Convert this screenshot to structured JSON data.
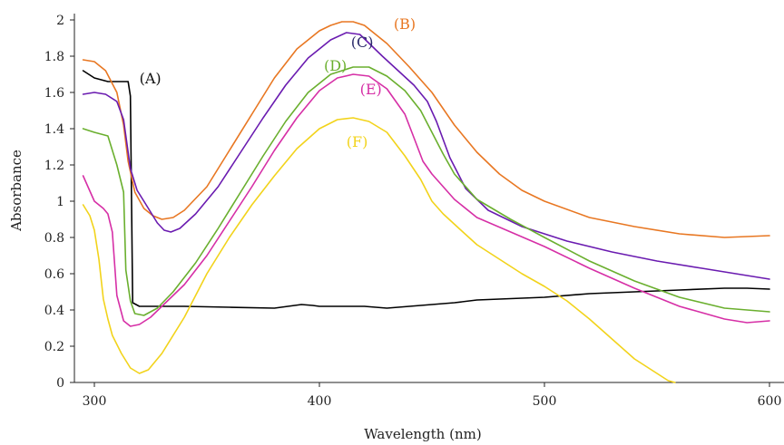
{
  "chart_data": {
    "type": "line",
    "xlabel": "Wavelength (nm)",
    "ylabel": "Absorbance",
    "xlim": [
      295,
      600
    ],
    "ylim": [
      0,
      2
    ],
    "x_ticks": [
      300,
      400,
      500,
      600
    ],
    "y_ticks": [
      0,
      0.2,
      0.4,
      0.6,
      0.8,
      1,
      1.2,
      1.4,
      1.6,
      1.8,
      2
    ],
    "x_tick_labels": [
      "300",
      "400",
      "500",
      "600"
    ],
    "y_tick_labels": [
      "0",
      "0.2",
      "0.4",
      "0.6",
      "0.8",
      "1",
      "1.2",
      "1.4",
      "1.6",
      "1.8",
      "2"
    ],
    "grid": false,
    "series": [
      {
        "name": "(A)",
        "color": "#000000",
        "points": [
          [
            295,
            1.72
          ],
          [
            300,
            1.68
          ],
          [
            306,
            1.66
          ],
          [
            311,
            1.66
          ],
          [
            315,
            1.66
          ],
          [
            316,
            1.58
          ],
          [
            317,
            0.44
          ],
          [
            320,
            0.42
          ],
          [
            340,
            0.42
          ],
          [
            360,
            0.415
          ],
          [
            380,
            0.41
          ],
          [
            386,
            0.42
          ],
          [
            392,
            0.43
          ],
          [
            397,
            0.425
          ],
          [
            400,
            0.42
          ],
          [
            420,
            0.42
          ],
          [
            430,
            0.41
          ],
          [
            440,
            0.42
          ],
          [
            460,
            0.44
          ],
          [
            470,
            0.455
          ],
          [
            480,
            0.46
          ],
          [
            500,
            0.47
          ],
          [
            520,
            0.49
          ],
          [
            540,
            0.5
          ],
          [
            560,
            0.51
          ],
          [
            580,
            0.52
          ],
          [
            590,
            0.52
          ],
          [
            600,
            0.515
          ]
        ]
      },
      {
        "name": "(B)",
        "color": "#E87722",
        "points": [
          [
            295,
            1.78
          ],
          [
            300,
            1.77
          ],
          [
            305,
            1.72
          ],
          [
            310,
            1.6
          ],
          [
            313,
            1.42
          ],
          [
            315,
            1.22
          ],
          [
            318,
            1.05
          ],
          [
            322,
            0.96
          ],
          [
            326,
            0.92
          ],
          [
            330,
            0.9
          ],
          [
            335,
            0.91
          ],
          [
            340,
            0.95
          ],
          [
            350,
            1.08
          ],
          [
            360,
            1.28
          ],
          [
            370,
            1.48
          ],
          [
            380,
            1.68
          ],
          [
            390,
            1.84
          ],
          [
            400,
            1.94
          ],
          [
            405,
            1.97
          ],
          [
            410,
            1.99
          ],
          [
            415,
            1.99
          ],
          [
            420,
            1.97
          ],
          [
            430,
            1.87
          ],
          [
            440,
            1.74
          ],
          [
            450,
            1.6
          ],
          [
            460,
            1.42
          ],
          [
            470,
            1.27
          ],
          [
            480,
            1.15
          ],
          [
            490,
            1.06
          ],
          [
            500,
            1.0
          ],
          [
            520,
            0.91
          ],
          [
            540,
            0.86
          ],
          [
            560,
            0.82
          ],
          [
            580,
            0.8
          ],
          [
            600,
            0.81
          ]
        ]
      },
      {
        "name": "(C)",
        "color": "#6A1BB0",
        "points": [
          [
            295,
            1.59
          ],
          [
            300,
            1.6
          ],
          [
            305,
            1.59
          ],
          [
            310,
            1.55
          ],
          [
            313,
            1.45
          ],
          [
            316,
            1.18
          ],
          [
            319,
            1.06
          ],
          [
            322,
            1.0
          ],
          [
            325,
            0.94
          ],
          [
            328,
            0.88
          ],
          [
            331,
            0.84
          ],
          [
            334,
            0.83
          ],
          [
            338,
            0.85
          ],
          [
            345,
            0.93
          ],
          [
            355,
            1.08
          ],
          [
            365,
            1.27
          ],
          [
            375,
            1.46
          ],
          [
            385,
            1.64
          ],
          [
            395,
            1.79
          ],
          [
            405,
            1.89
          ],
          [
            412,
            1.93
          ],
          [
            418,
            1.92
          ],
          [
            423,
            1.86
          ],
          [
            428,
            1.8
          ],
          [
            435,
            1.72
          ],
          [
            442,
            1.64
          ],
          [
            448,
            1.55
          ],
          [
            452,
            1.44
          ],
          [
            458,
            1.24
          ],
          [
            465,
            1.07
          ],
          [
            475,
            0.95
          ],
          [
            490,
            0.86
          ],
          [
            510,
            0.78
          ],
          [
            530,
            0.72
          ],
          [
            550,
            0.67
          ],
          [
            570,
            0.63
          ],
          [
            585,
            0.6
          ],
          [
            600,
            0.57
          ]
        ]
      },
      {
        "name": "(D)",
        "color": "#6AAF2E",
        "points": [
          [
            295,
            1.4
          ],
          [
            300,
            1.38
          ],
          [
            306,
            1.36
          ],
          [
            310,
            1.2
          ],
          [
            313,
            1.05
          ],
          [
            314,
            0.62
          ],
          [
            316,
            0.45
          ],
          [
            318,
            0.38
          ],
          [
            322,
            0.37
          ],
          [
            328,
            0.41
          ],
          [
            335,
            0.5
          ],
          [
            345,
            0.66
          ],
          [
            355,
            0.85
          ],
          [
            365,
            1.05
          ],
          [
            375,
            1.25
          ],
          [
            385,
            1.44
          ],
          [
            395,
            1.6
          ],
          [
            405,
            1.7
          ],
          [
            415,
            1.74
          ],
          [
            422,
            1.74
          ],
          [
            430,
            1.69
          ],
          [
            438,
            1.61
          ],
          [
            445,
            1.5
          ],
          [
            450,
            1.38
          ],
          [
            455,
            1.26
          ],
          [
            460,
            1.15
          ],
          [
            470,
            1.01
          ],
          [
            485,
            0.9
          ],
          [
            500,
            0.8
          ],
          [
            520,
            0.67
          ],
          [
            540,
            0.56
          ],
          [
            560,
            0.47
          ],
          [
            580,
            0.41
          ],
          [
            600,
            0.39
          ]
        ]
      },
      {
        "name": "(E)",
        "color": "#D62FA6",
        "points": [
          [
            295,
            1.14
          ],
          [
            300,
            1.0
          ],
          [
            304,
            0.96
          ],
          [
            306,
            0.93
          ],
          [
            308,
            0.83
          ],
          [
            310,
            0.48
          ],
          [
            313,
            0.34
          ],
          [
            316,
            0.31
          ],
          [
            320,
            0.32
          ],
          [
            325,
            0.36
          ],
          [
            330,
            0.42
          ],
          [
            340,
            0.54
          ],
          [
            350,
            0.7
          ],
          [
            360,
            0.89
          ],
          [
            370,
            1.08
          ],
          [
            380,
            1.28
          ],
          [
            390,
            1.46
          ],
          [
            400,
            1.61
          ],
          [
            408,
            1.68
          ],
          [
            415,
            1.7
          ],
          [
            422,
            1.69
          ],
          [
            430,
            1.62
          ],
          [
            438,
            1.48
          ],
          [
            442,
            1.35
          ],
          [
            446,
            1.22
          ],
          [
            450,
            1.15
          ],
          [
            460,
            1.01
          ],
          [
            470,
            0.91
          ],
          [
            485,
            0.83
          ],
          [
            500,
            0.75
          ],
          [
            520,
            0.63
          ],
          [
            540,
            0.52
          ],
          [
            560,
            0.42
          ],
          [
            580,
            0.35
          ],
          [
            590,
            0.33
          ],
          [
            600,
            0.34
          ]
        ]
      },
      {
        "name": "(F)",
        "color": "#F2D31B",
        "points": [
          [
            295,
            0.98
          ],
          [
            298,
            0.92
          ],
          [
            300,
            0.84
          ],
          [
            302,
            0.68
          ],
          [
            304,
            0.46
          ],
          [
            306,
            0.35
          ],
          [
            308,
            0.26
          ],
          [
            312,
            0.16
          ],
          [
            316,
            0.08
          ],
          [
            320,
            0.05
          ],
          [
            324,
            0.07
          ],
          [
            330,
            0.16
          ],
          [
            340,
            0.36
          ],
          [
            350,
            0.6
          ],
          [
            360,
            0.8
          ],
          [
            370,
            0.98
          ],
          [
            380,
            1.14
          ],
          [
            390,
            1.29
          ],
          [
            400,
            1.4
          ],
          [
            408,
            1.45
          ],
          [
            415,
            1.46
          ],
          [
            422,
            1.44
          ],
          [
            430,
            1.38
          ],
          [
            438,
            1.25
          ],
          [
            445,
            1.12
          ],
          [
            450,
            1.0
          ],
          [
            455,
            0.93
          ],
          [
            462,
            0.85
          ],
          [
            470,
            0.76
          ],
          [
            480,
            0.68
          ],
          [
            490,
            0.6
          ],
          [
            500,
            0.53
          ],
          [
            510,
            0.45
          ],
          [
            520,
            0.35
          ],
          [
            530,
            0.24
          ],
          [
            540,
            0.13
          ],
          [
            550,
            0.05
          ],
          [
            555,
            0.01
          ],
          [
            558,
            0.0
          ]
        ]
      }
    ],
    "series_label_values": [
      {
        "name": "(A)",
        "x": 320,
        "y": 1.65
      },
      {
        "name": "(B)",
        "x": 433,
        "y": 1.95
      },
      {
        "name": "(C)",
        "x": 414,
        "y": 1.85
      },
      {
        "name": "(D)",
        "x": 402,
        "y": 1.72
      },
      {
        "name": "(E)",
        "x": 418,
        "y": 1.59
      },
      {
        "name": "(F)",
        "x": 412,
        "y": 1.3
      }
    ]
  }
}
